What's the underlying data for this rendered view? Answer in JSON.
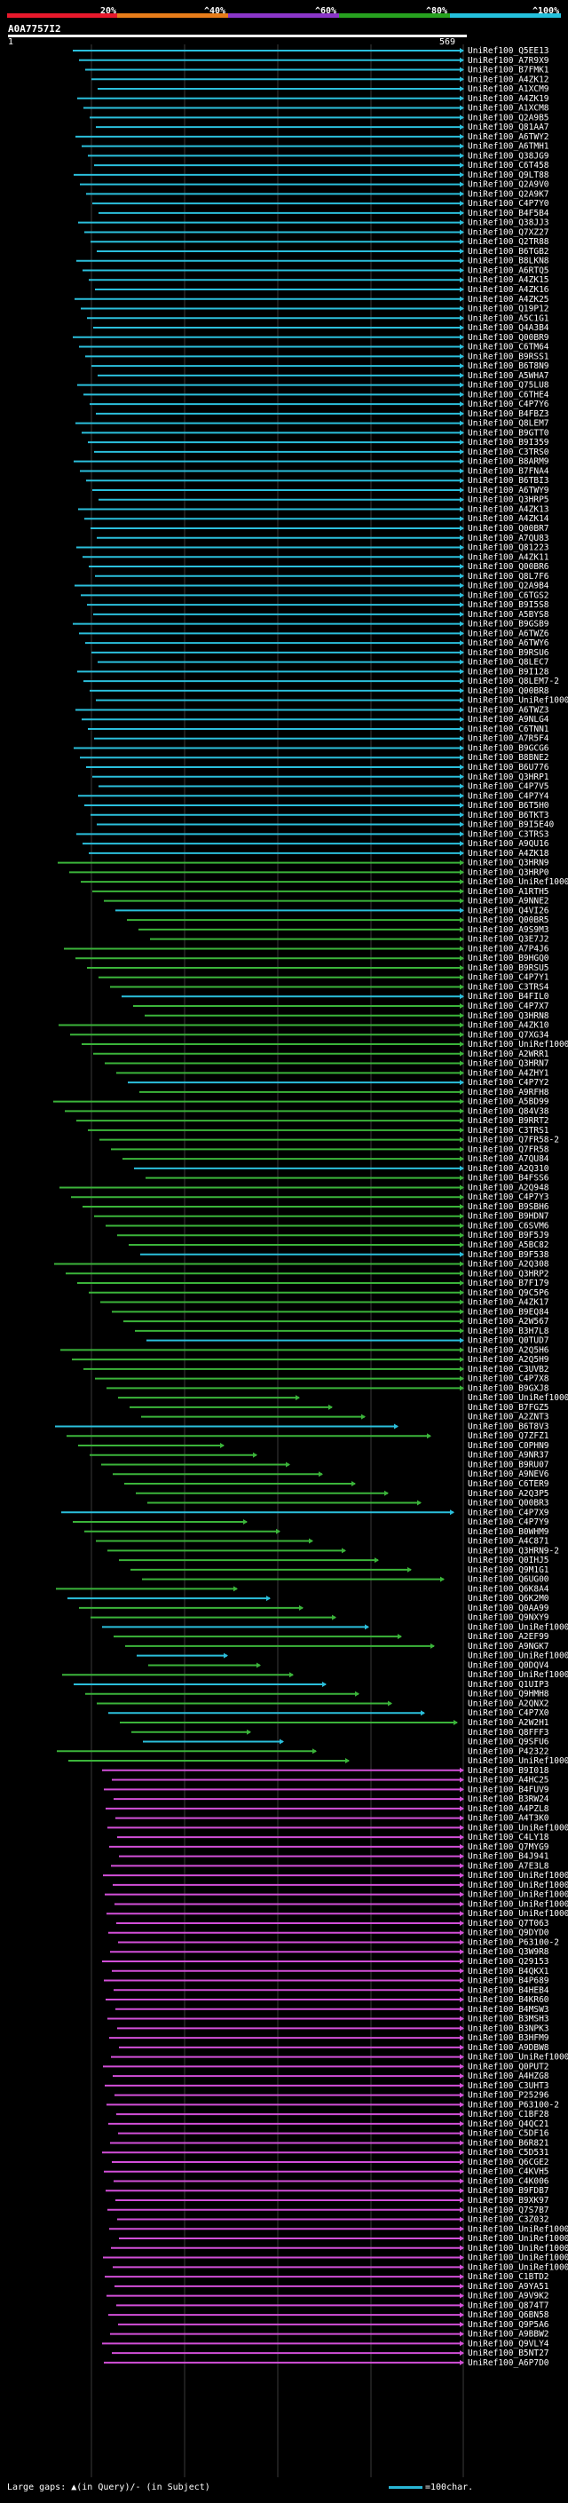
{
  "scale": {
    "ticks": [
      "20%",
      "^40%",
      "^60%",
      "^80%",
      "^100%"
    ],
    "colors": [
      "#e8192c",
      "#e87d1a",
      "#8b36c8",
      "#27a11f",
      "#24c0dc"
    ]
  },
  "query": {
    "id": "A0A7757I2",
    "start": "1",
    "end": "569"
  },
  "colors": {
    "cyan": "#2bbfdc",
    "green": "#3bb43a",
    "magenta": "#d24fd8",
    "grid": "#3a3a3a"
  },
  "hits": [
    "UniRef100_Q5EE13",
    "UniRef100_A7R9X9",
    "UniRef100_B7FMK1",
    "UniRef100_A4ZK12",
    "UniRef100_A1XCM9",
    "UniRef100_A4ZK19",
    "UniRef100_A1XCM8",
    "UniRef100_Q2A9B5",
    "UniRef100_Q81AA7",
    "UniRef100_A6TWY2",
    "UniRef100_A6TMH1",
    "UniRef100_Q38JG9",
    "UniRef100_C6T458",
    "UniRef100_Q9LT88",
    "UniRef100_Q2A9V0",
    "UniRef100_Q2A9K7",
    "UniRef100_C4P7Y0",
    "UniRef100_B4F5B4",
    "UniRef100_Q38JJ3",
    "UniRef100_Q7XZ27",
    "UniRef100_Q2TR88",
    "UniRef100_B6TGB2",
    "UniRef100_B8LKN8",
    "UniRef100_A6RTQ5",
    "UniRef100_A4ZK15",
    "UniRef100_A4ZK16",
    "UniRef100_A4ZK25",
    "UniRef100_Q19P12",
    "UniRef100_A5C1G1",
    "UniRef100_Q4A3B4",
    "UniRef100_Q00BR9",
    "UniRef100_C6TM64",
    "UniRef100_B9RSS1",
    "UniRef100_B6T8N9",
    "UniRef100_A5WHA7",
    "UniRef100_Q75LU8",
    "UniRef100_C6THE4",
    "UniRef100_C4P7Y6",
    "UniRef100_B4FBZ3",
    "UniRef100_Q8LEM7",
    "UniRef100_B9GTT0",
    "UniRef100_B9I359",
    "UniRef100_C3TRS0",
    "UniRef100_B8ARM9",
    "UniRef100_B7FNA4",
    "UniRef100_B6TBI3",
    "UniRef100_A6TWY9",
    "UniRef100_Q3HRP5",
    "UniRef100_A4ZK13",
    "UniRef100_A4ZK14",
    "UniRef100_Q00BR7",
    "UniRef100_A7QU83",
    "UniRef100_Q81223",
    "UniRef100_A4ZK11",
    "UniRef100_Q00BR6",
    "UniRef100_Q8L7F6",
    "UniRef100_Q2A9B4",
    "UniRef100_C6TGS2",
    "UniRef100_B9I5S8",
    "UniRef100_A5BYS8",
    "UniRef100_B9GSB9",
    "UniRef100_A6TWZ6",
    "UniRef100_A6TWY6",
    "UniRef100_B9RSU6",
    "UniRef100_Q8LEC7",
    "UniRef100_B9I128",
    "UniRef100_Q8LEM7-2",
    "UniRef100_Q00BR8",
    "UniRef100_UniRef1000...",
    "UniRef100_A6TWZ3",
    "UniRef100_A9NLG4",
    "UniRef100_C6TNN1",
    "UniRef100_A7R5F4",
    "UniRef100_B9GCG6",
    "UniRef100_B8BNE2",
    "UniRef100_B6U776",
    "UniRef100_Q3HRP1",
    "UniRef100_C4P7V5",
    "UniRef100_C4P7Y4",
    "UniRef100_B6T5H0",
    "UniRef100_B6TKT3",
    "UniRef100_B9I5E40",
    "UniRef100_C3TRS3",
    "UniRef100_A9QU16",
    "UniRef100_A4ZK18",
    "UniRef100_Q3HRN9",
    "UniRef100_Q3HRP0",
    "UniRef100_UniRef1000...",
    "UniRef100_A1RTH5",
    "UniRef100_A9NNE2",
    "UniRef100_Q4VI26",
    "UniRef100_Q00BR5",
    "UniRef100_A9S9M3",
    "UniRef100_Q3E7J2",
    "UniRef100_A7P4J6",
    "UniRef100_B9HGQ0",
    "UniRef100_B9RSU5",
    "UniRef100_C4P7Y1",
    "UniRef100_C3TRS4",
    "UniRef100_B4FIL0",
    "UniRef100_C4P7X7",
    "UniRef100_Q3HRN8",
    "UniRef100_A4ZK10",
    "UniRef100_Q7XG34",
    "UniRef100_UniRef1000...",
    "UniRef100_A2WRR1",
    "UniRef100_Q3HRN7",
    "UniRef100_A4ZHY1",
    "UniRef100_C4P7Y2",
    "UniRef100_A9RFH8",
    "UniRef100_A5BD99",
    "UniRef100_Q84V38",
    "UniRef100_B9RRT2",
    "UniRef100_C3TRS1",
    "UniRef100_Q7FR58-2",
    "UniRef100_Q7FR58",
    "UniRef100_A7QU84",
    "UniRef100_A2Q310",
    "UniRef100_B4FSS6",
    "UniRef100_A2Q948",
    "UniRef100_C4P7Y3",
    "UniRef100_B9SBH6",
    "UniRef100_B9HDN7",
    "UniRef100_C6SVM6",
    "UniRef100_B9F5J9",
    "UniRef100_A5BC82",
    "UniRef100_B9F538",
    "UniRef100_A2Q308",
    "UniRef100_Q3HRP2",
    "UniRef100_B7F179",
    "UniRef100_Q9C5P6",
    "UniRef100_A4ZK17",
    "UniRef100_B9EQ84",
    "UniRef100_A2W567",
    "UniRef100_B3H7L8",
    "UniRef100_Q0TUD7",
    "UniRef100_A2Q5H6",
    "UniRef100_A2Q5H9",
    "UniRef100_C3UVB2",
    "UniRef100_C4P7X8",
    "UniRef100_B9GXJ8",
    "UniRef100_UniRef1000...",
    "UniRef100_B7FGZ5",
    "UniRef100_A2ZNT3",
    "UniRef100_B6T8V3",
    "UniRef100_Q7ZFZ1",
    "UniRef100_C0PHN9",
    "UniRef100_A9NR37",
    "UniRef100_B9RU07",
    "UniRef100_A9NEV6",
    "UniRef100_C6TER9",
    "UniRef100_A2Q3P5",
    "UniRef100_Q00BR3",
    "UniRef100_C4P7X9",
    "UniRef100_C4P7Y9",
    "UniRef100_B0WHM9",
    "UniRef100_A4C871",
    "UniRef100_Q3HRN9-2",
    "UniRef100_Q0IHJ5",
    "UniRef100_Q9M1G1",
    "UniRef100_Q6UG00",
    "UniRef100_Q6K8A4",
    "UniRef100_Q6K2M0",
    "UniRef100_Q0AA99",
    "UniRef100_Q9NXY9",
    "UniRef100_UniRef1000...",
    "UniRef100_A2EF99",
    "UniRef100_A9NGK7",
    "UniRef100_UniRef1000...",
    "UniRef100_Q0DQV4",
    "UniRef100_UniRef1000...",
    "UniRef100_Q1UIP3",
    "UniRef100_Q9HMH8",
    "UniRef100_A2QNX2",
    "UniRef100_C4P7X0",
    "UniRef100_A2W2H1",
    "UniRef100_Q8FFF3",
    "UniRef100_Q9SFU6",
    "UniRef100_P42322",
    "UniRef100_UniRef1000...",
    "UniRef100_B9I018",
    "UniRef100_A4HC25",
    "UniRef100_B4FUV9",
    "UniRef100_B3RW24",
    "UniRef100_A4PZL8",
    "UniRef100_A4T3K0",
    "UniRef100_UniRef1000...",
    "UniRef100_C4LY18",
    "UniRef100_Q7MYG9",
    "UniRef100_B4J941",
    "UniRef100_A7E3L8",
    "UniRef100_UniRef1000...",
    "UniRef100_UniRef1000...",
    "UniRef100_UniRef1000...",
    "UniRef100_UniRef1000...",
    "UniRef100_UniRef1000...",
    "UniRef100_Q7T063",
    "UniRef100_Q9DYD0",
    "UniRef100_P63100-2",
    "UniRef100_Q3W9R8",
    "UniRef100_Q29153",
    "UniRef100_B4QKX1",
    "UniRef100_B4P689",
    "UniRef100_B4HEB4",
    "UniRef100_B4KR60",
    "UniRef100_B4MSW3",
    "UniRef100_B3MSH3",
    "UniRef100_B3NPK3",
    "UniRef100_B3HFM9",
    "UniRef100_A9DBW8",
    "UniRef100_UniRef1000...",
    "UniRef100_Q0PUT2",
    "UniRef100_A4HZG8",
    "UniRef100_C3UHT3",
    "UniRef100_P25296",
    "UniRef100_P63100-2",
    "UniRef100_C1BF28",
    "UniRef100_Q4QC21",
    "UniRef100_C5DF16",
    "UniRef100_B6R821",
    "UniRef100_C5D531",
    "UniRef100_Q6CGE2",
    "UniRef100_C4KVH5",
    "UniRef100_C4K006",
    "UniRef100_B9FDB7",
    "UniRef100_B9XK97",
    "UniRef100_Q7S7B7",
    "UniRef100_C3Z032",
    "UniRef100_UniRef1000...",
    "UniRef100_UniRef1000...",
    "UniRef100_UniRef1000...",
    "UniRef100_UniRef1000...",
    "UniRef100_UniRef1000...",
    "UniRef100_C1BTD2",
    "UniRef100_A9YA51",
    "UniRef100_A9V9K2",
    "UniRef100_Q874T7",
    "UniRef100_Q6BN58",
    "UniRef100_Q9P5A6",
    "UniRef100_A9BBW2",
    "UniRef100_Q9VLY4",
    "UniRef100_B5NT27",
    "UniRef100_A6P7D0"
  ],
  "legend": {
    "gaps_text": "Large gaps: ▲(in Query)/- (in Subject)",
    "scale_text": "=100char."
  }
}
